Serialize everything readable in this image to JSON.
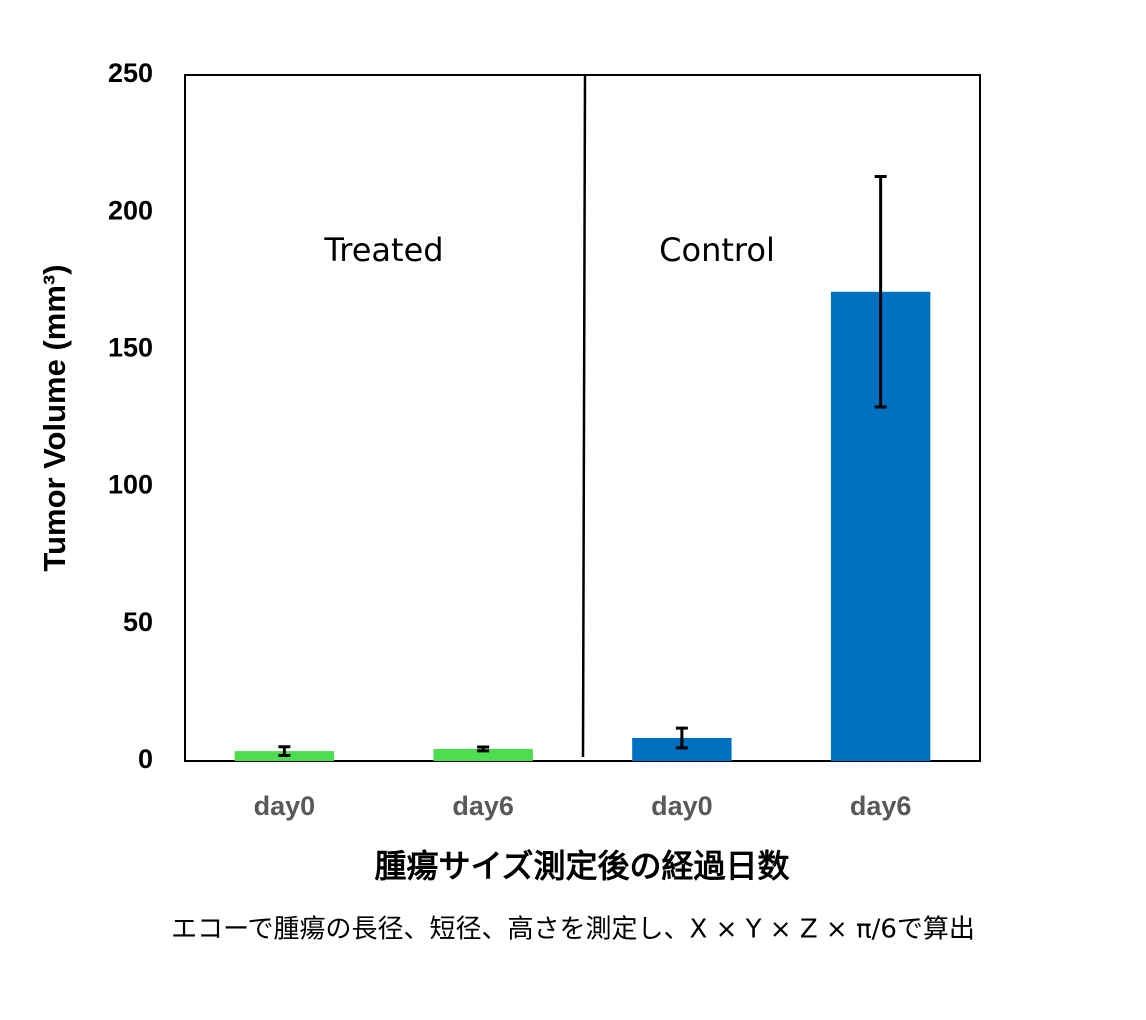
{
  "chart_data": {
    "type": "bar",
    "categories": [
      "day0",
      "day6",
      "day0",
      "day6"
    ],
    "values": [
      3.6,
      4.4,
      8.4,
      171
    ],
    "errors": [
      1.6,
      0.7,
      3.6,
      42
    ],
    "colors": [
      "#4cdd50",
      "#4cdd50",
      "#0070c0",
      "#0070c0"
    ],
    "annotations": [
      "Treated",
      "Control"
    ],
    "ylabel": "Tumor Volume (mm³)",
    "xlabel": "腫瘍サイズ測定後の経過日数",
    "footnote": "エコーで腫瘍の長径、短径、高さを測定し、X × Y × Z × π/6で算出",
    "ylim": [
      0,
      250
    ],
    "yticks": [
      0,
      50,
      100,
      150,
      200,
      250
    ],
    "grid": false
  }
}
